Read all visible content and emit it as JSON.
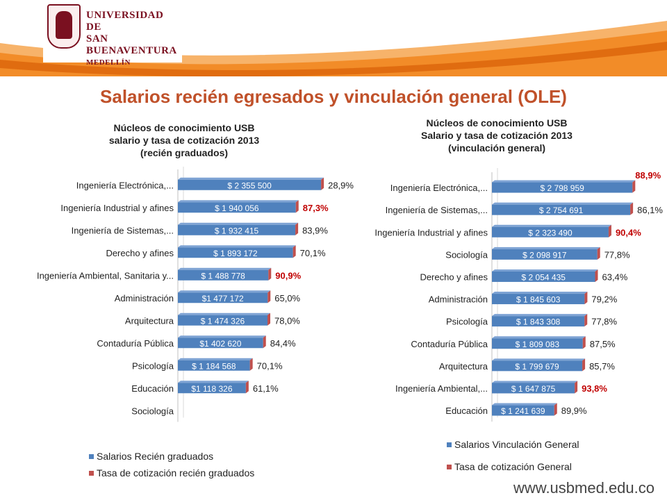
{
  "header": {
    "logo_line1": "Universidad de",
    "logo_line2": "San Buenaventura",
    "logo_line3": "Medellín"
  },
  "page_title": "Salarios recién egresados y vinculación general (OLE)",
  "footer_url": "www.usbmed.edu.co",
  "colors": {
    "bar": "#4f81bd",
    "rate": "#c0504d",
    "rate_highlight": "#c00000",
    "accent": "#c0512a",
    "band": "#f28c28"
  },
  "chart_data": [
    {
      "type": "bar",
      "orientation": "horizontal",
      "title_lines": [
        "Núcleos de conocimiento USB",
        "salario y tasa de cotización 2013",
        "(recién graduados)"
      ],
      "categories": [
        "Ingeniería Electrónica,...",
        "Ingeniería Industrial y afines",
        "Ingeniería de Sistemas,...",
        "Derecho y afines",
        "Ingeniería Ambiental, Sanitaria y...",
        "Administración",
        "Arquitectura",
        "Contaduría Pública",
        "Psicología",
        "Educación",
        "Sociología"
      ],
      "series": [
        {
          "name": "Salarios Recién graduados",
          "values": [
            2355500,
            1940056,
            1932415,
            1893172,
            1488778,
            1477172,
            1474326,
            1402620,
            1184568,
            1118326,
            null
          ],
          "labels": [
            "$ 2 355 500",
            "$ 1 940 056",
            "$ 1 932 415",
            "$ 1 893 172",
            "$ 1 488 778",
            "$1 477 172",
            "$ 1 474 326",
            "$1 402 620",
            "$ 1 184 568",
            "$1 118 326",
            ""
          ]
        },
        {
          "name": "Tasa de cotización recién graduados",
          "values": [
            28.9,
            87.3,
            83.9,
            70.1,
            90.9,
            65.0,
            78.0,
            84.4,
            70.1,
            61.1,
            null
          ],
          "labels": [
            "28,9%",
            "87,3%",
            "83,9%",
            "70,1%",
            "90,9%",
            "65,0%",
            "78,0%",
            "84,4%",
            "70,1%",
            "61,1%",
            ""
          ],
          "highlight": [
            false,
            true,
            false,
            false,
            true,
            false,
            false,
            false,
            false,
            false,
            false
          ]
        }
      ],
      "xlim": [
        0,
        2400000
      ],
      "legend_position": "bottom"
    },
    {
      "type": "bar",
      "orientation": "horizontal",
      "title_lines": [
        "Núcleos de conocimiento USB",
        "Salario y tasa de cotización 2013",
        "(vinculación general)"
      ],
      "categories": [
        "Ingeniería Electrónica,...",
        "Ingeniería de Sistemas,...",
        "Ingeniería Industrial y afines",
        "Sociología",
        "Derecho y afines",
        "Administración",
        "Psicología",
        "Contaduría Pública",
        "Arquitectura",
        "Ingeniería Ambiental,...",
        "Educación"
      ],
      "series": [
        {
          "name": "Salarios Vinculación General",
          "values": [
            2798959,
            2754691,
            2323490,
            2098917,
            2054435,
            1845603,
            1843308,
            1809083,
            1799679,
            1647875,
            1241639
          ],
          "labels": [
            "$ 2 798 959",
            "$ 2 754 691",
            "$ 2 323 490",
            "$ 2 098 917",
            "$ 2 054 435",
            "$ 1 845 603",
            "$ 1 843 308",
            "$ 1 809 083",
            "$ 1 799 679",
            "$ 1 647 875",
            "$ 1 241 639"
          ]
        },
        {
          "name": "Tasa de cotización General",
          "values": [
            88.9,
            86.1,
            90.4,
            77.8,
            63.4,
            79.2,
            77.8,
            87.5,
            85.7,
            93.8,
            89.9
          ],
          "labels": [
            "88,9%",
            "86,1%",
            "90,4%",
            "77,8%",
            "63,4%",
            "79,2%",
            "77,8%",
            "87,5%",
            "85,7%",
            "93,8%",
            "89,9%"
          ],
          "highlight": [
            true,
            false,
            true,
            false,
            false,
            false,
            false,
            false,
            false,
            true,
            false
          ]
        }
      ],
      "xlim": [
        0,
        2850000
      ],
      "legend_position": "bottom"
    }
  ]
}
